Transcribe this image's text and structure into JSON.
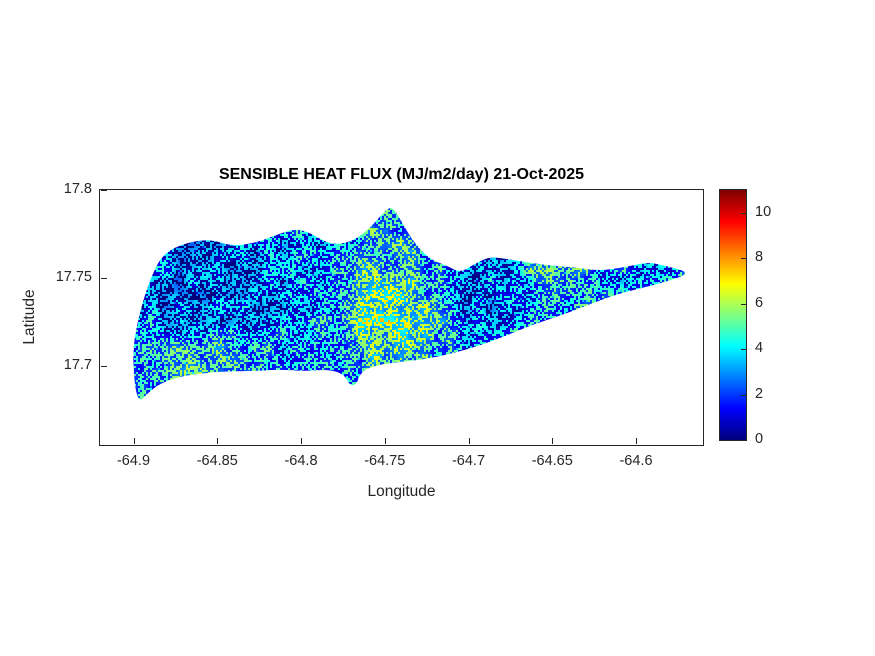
{
  "chart_data": {
    "type": "heatmap",
    "title": "SENSIBLE HEAT FLUX (MJ/m2/day) 21-Oct-2025",
    "xlabel": "Longitude",
    "ylabel": "Latitude",
    "xlim": [
      -64.92,
      -64.56
    ],
    "ylim": [
      17.655,
      17.8
    ],
    "x_ticks": [
      -64.9,
      -64.85,
      -64.8,
      -64.75,
      -64.7,
      -64.65,
      -64.6
    ],
    "x_tick_labels": [
      "-64.9",
      "-64.85",
      "-64.8",
      "-64.75",
      "-64.7",
      "-64.65",
      "-64.6"
    ],
    "y_ticks": [
      17.7,
      17.75,
      17.8
    ],
    "y_tick_labels": [
      "17.7",
      "17.75",
      "17.8"
    ],
    "grid": false,
    "colormap": "jet",
    "background_color": "#FFFFFF",
    "axis_color": "#262626",
    "colorbar": {
      "min": 0,
      "max": 11,
      "ticks": [
        0,
        2,
        4,
        6,
        8,
        10
      ],
      "tick_labels": [
        "0",
        "2",
        "4",
        "6",
        "8",
        "10"
      ],
      "position": "right"
    },
    "region": "St. Croix island silhouette",
    "outline_lonlat": [
      [
        -64.898,
        17.678
      ],
      [
        -64.901,
        17.708
      ],
      [
        -64.896,
        17.732
      ],
      [
        -64.889,
        17.752
      ],
      [
        -64.882,
        17.764
      ],
      [
        -64.869,
        17.77
      ],
      [
        -64.854,
        17.772
      ],
      [
        -64.841,
        17.768
      ],
      [
        -64.827,
        17.77
      ],
      [
        -64.816,
        17.774
      ],
      [
        -64.804,
        17.778
      ],
      [
        -64.795,
        17.776
      ],
      [
        -64.783,
        17.769
      ],
      [
        -64.771,
        17.77
      ],
      [
        -64.76,
        17.777
      ],
      [
        -64.751,
        17.787
      ],
      [
        -64.746,
        17.791
      ],
      [
        -64.741,
        17.784
      ],
      [
        -64.734,
        17.772
      ],
      [
        -64.724,
        17.761
      ],
      [
        -64.713,
        17.757
      ],
      [
        -64.705,
        17.753
      ],
      [
        -64.698,
        17.757
      ],
      [
        -64.688,
        17.762
      ],
      [
        -64.678,
        17.761
      ],
      [
        -64.666,
        17.759
      ],
      [
        -64.651,
        17.757
      ],
      [
        -64.636,
        17.756
      ],
      [
        -64.622,
        17.754
      ],
      [
        -64.607,
        17.756
      ],
      [
        -64.593,
        17.759
      ],
      [
        -64.583,
        17.757
      ],
      [
        -64.567,
        17.753
      ],
      [
        -64.581,
        17.748
      ],
      [
        -64.598,
        17.744
      ],
      [
        -64.614,
        17.74
      ],
      [
        -64.63,
        17.734
      ],
      [
        -64.647,
        17.728
      ],
      [
        -64.663,
        17.723
      ],
      [
        -64.678,
        17.717
      ],
      [
        -64.692,
        17.712
      ],
      [
        -64.706,
        17.708
      ],
      [
        -64.719,
        17.705
      ],
      [
        -64.733,
        17.703
      ],
      [
        -64.744,
        17.702
      ],
      [
        -64.756,
        17.7
      ],
      [
        -64.764,
        17.697
      ],
      [
        -64.767,
        17.689
      ],
      [
        -64.771,
        17.689
      ],
      [
        -64.774,
        17.695
      ],
      [
        -64.783,
        17.698
      ],
      [
        -64.798,
        17.697
      ],
      [
        -64.813,
        17.698
      ],
      [
        -64.827,
        17.697
      ],
      [
        -64.842,
        17.697
      ],
      [
        -64.857,
        17.696
      ],
      [
        -64.872,
        17.694
      ],
      [
        -64.884,
        17.69
      ],
      [
        -64.891,
        17.685
      ]
    ],
    "value_grid": {
      "lons": [
        -64.9,
        -64.88,
        -64.86,
        -64.84,
        -64.82,
        -64.8,
        -64.78,
        -64.76,
        -64.74,
        -64.72,
        -64.7,
        -64.68,
        -64.66,
        -64.64,
        -64.62,
        -64.6,
        -64.58,
        -64.56
      ],
      "lats": [
        17.68,
        17.695,
        17.71,
        17.725,
        17.74,
        17.755,
        17.77,
        17.785
      ],
      "values": [
        [
          6.0,
          6.8,
          6.5,
          6.2,
          6.0,
          6.0,
          5.8,
          6.0,
          6.0,
          6.0,
          6.0,
          6.0,
          6.0,
          6.0,
          6.0,
          6.0,
          6.0,
          6.0
        ],
        [
          6.5,
          7.0,
          7.2,
          6.8,
          6.5,
          6.2,
          5.2,
          6.5,
          6.8,
          6.0,
          5.8,
          5.8,
          6.0,
          6.0,
          6.0,
          6.0,
          6.0,
          6.0
        ],
        [
          6.0,
          6.5,
          7.0,
          6.8,
          6.2,
          6.0,
          6.5,
          7.5,
          7.8,
          6.5,
          5.5,
          5.6,
          5.8,
          5.8,
          6.0,
          6.0,
          6.0,
          6.0
        ],
        [
          5.8,
          5.5,
          5.2,
          5.5,
          5.5,
          5.8,
          6.2,
          8.0,
          8.3,
          7.0,
          5.2,
          5.5,
          5.8,
          6.0,
          5.8,
          5.8,
          6.0,
          6.0
        ],
        [
          5.5,
          5.0,
          4.8,
          5.2,
          5.5,
          5.5,
          6.0,
          7.8,
          8.2,
          6.5,
          4.8,
          5.5,
          6.0,
          6.2,
          5.8,
          6.0,
          6.0,
          6.0
        ],
        [
          5.2,
          4.8,
          4.6,
          5.0,
          5.2,
          5.5,
          5.8,
          7.0,
          7.5,
          6.0,
          5.2,
          5.5,
          6.8,
          7.2,
          6.0,
          5.8,
          6.0,
          7.0
        ],
        [
          5.5,
          5.2,
          4.8,
          5.2,
          5.5,
          5.8,
          5.5,
          6.5,
          7.0,
          5.5,
          5.0,
          5.5,
          6.5,
          6.2,
          5.8,
          6.0,
          6.2,
          6.5
        ],
        [
          5.8,
          6.0,
          6.0,
          5.8,
          6.0,
          6.2,
          6.0,
          6.5,
          6.2,
          5.8,
          5.5,
          5.8,
          6.0,
          6.0,
          5.8,
          6.0,
          6.0,
          6.0
        ]
      ]
    },
    "texture": {
      "seed": 7,
      "noise_amp_small": 0.55,
      "noise_amp_large": 0.85,
      "speckle_high": 2.0,
      "speckle_low": 1.6,
      "speckle_deep": 3.2
    }
  }
}
